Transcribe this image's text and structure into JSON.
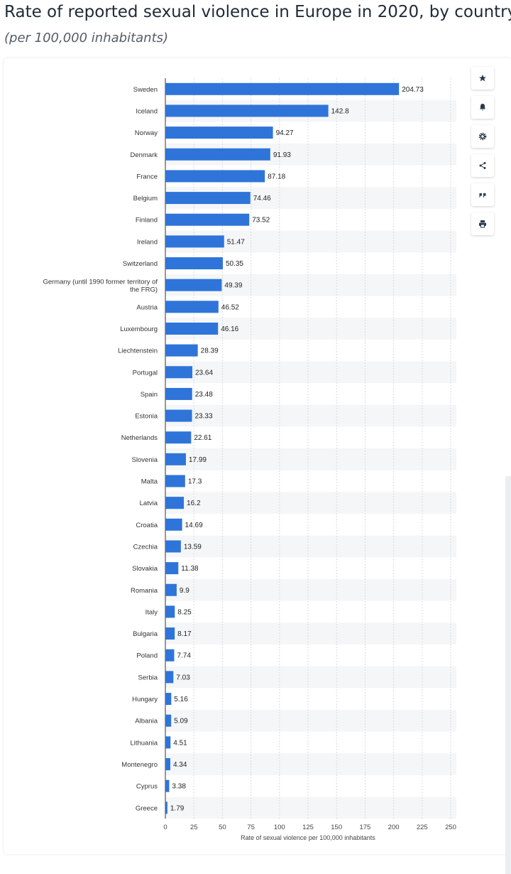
{
  "header": {
    "title": "Rate of reported sexual violence in Europe in 2020, by country",
    "subtitle": "(per 100,000 inhabitants)"
  },
  "toolbar": [
    {
      "name": "star-icon"
    },
    {
      "name": "bell-icon"
    },
    {
      "name": "gear-icon"
    },
    {
      "name": "share-icon"
    },
    {
      "name": "quote-icon"
    },
    {
      "name": "print-icon"
    }
  ],
  "colors": {
    "bar": "#2f74d9",
    "stripe": "#f4f6f8",
    "grid": "#d7dbe0"
  },
  "chart_data": {
    "type": "bar",
    "orientation": "horizontal",
    "categories": [
      "Sweden",
      "Iceland",
      "Norway",
      "Denmark",
      "France",
      "Belgium",
      "Finland",
      "Ireland",
      "Switzerland",
      "Germany (until 1990 former territory of the FRG)",
      "Austria",
      "Luxembourg",
      "Liechtenstein",
      "Portugal",
      "Spain",
      "Estonia",
      "Netherlands",
      "Slovenia",
      "Malta",
      "Latvia",
      "Croatia",
      "Czechia",
      "Slovakia",
      "Romania",
      "Italy",
      "Bulgaria",
      "Poland",
      "Serbia",
      "Hungary",
      "Albania",
      "Lithuania",
      "Montenegro",
      "Cyprus",
      "Greece"
    ],
    "values": [
      204.73,
      142.8,
      94.27,
      91.93,
      87.18,
      74.46,
      73.52,
      51.47,
      50.35,
      49.39,
      46.52,
      46.16,
      28.39,
      23.64,
      23.48,
      23.33,
      22.61,
      17.99,
      17.3,
      16.2,
      14.69,
      13.59,
      11.38,
      9.9,
      8.25,
      8.17,
      7.74,
      7.03,
      5.16,
      5.09,
      4.51,
      4.34,
      3.38,
      1.79
    ],
    "value_labels": [
      "204.73",
      "142.8",
      "94.27",
      "91.93",
      "87.18",
      "74.46",
      "73.52",
      "51.47",
      "50.35",
      "49.39",
      "46.52",
      "46.16",
      "28.39",
      "23.64",
      "23.48",
      "23.33",
      "22.61",
      "17.99",
      "17.3",
      "16.2",
      "14.69",
      "13.59",
      "11.38",
      "9.9",
      "8.25",
      "8.17",
      "7.74",
      "7.03",
      "5.16",
      "5.09",
      "4.51",
      "4.34",
      "3.38",
      "1.79"
    ],
    "xlabel": "Rate of sexual violence per 100,000 inhabitants",
    "xlim": [
      0,
      250
    ],
    "xticks": [
      "0",
      "25",
      "50",
      "75",
      "100",
      "125",
      "150",
      "175",
      "200",
      "225",
      "250"
    ],
    "grid": true
  }
}
